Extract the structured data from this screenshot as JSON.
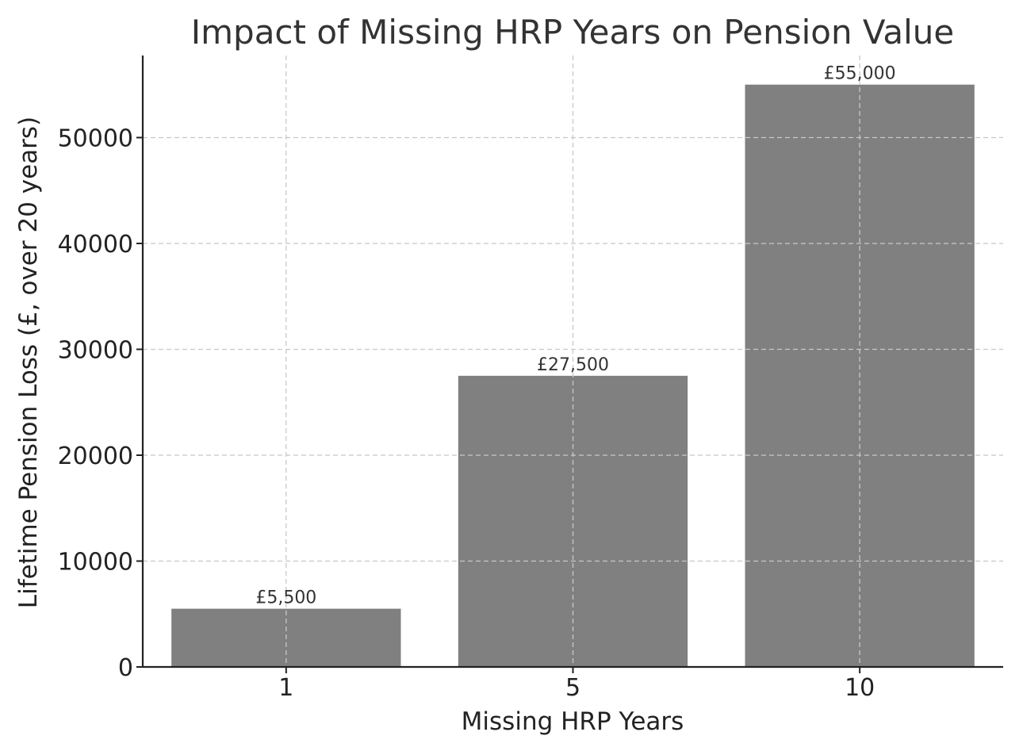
{
  "chart_data": {
    "type": "bar",
    "title": "Impact of Missing HRP Years on Pension Value",
    "xlabel": "Missing HRP Years",
    "ylabel": "Lifetime Pension Loss (£, over 20 years)",
    "categories": [
      "1",
      "5",
      "10"
    ],
    "values": [
      5500,
      27500,
      55000
    ],
    "data_labels": [
      "£5,500",
      "£27,500",
      "£55,000"
    ],
    "yticks": [
      0,
      10000,
      20000,
      30000,
      40000,
      50000
    ],
    "ylim": [
      0,
      57750
    ],
    "grid": true,
    "bar_color": "#808080"
  }
}
